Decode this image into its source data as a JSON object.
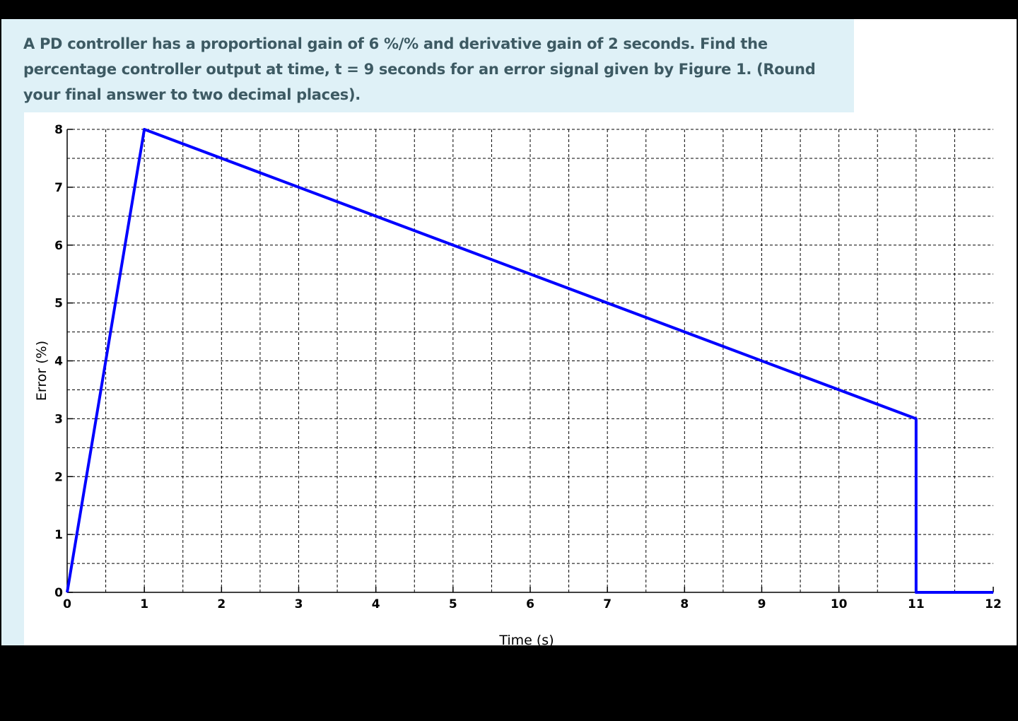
{
  "question": {
    "text": "A PD controller has a proportional gain of 6 %/% and derivative gain of 2 seconds. Find the percentage controller output at time, t = 9 seconds for an error signal given by Figure 1. (Round your final answer to two decimal places)."
  },
  "chart_data": {
    "type": "line",
    "title": "",
    "xlabel": "Time (s)",
    "ylabel": "Error (%)",
    "xlim": [
      0,
      12
    ],
    "ylim": [
      0,
      8
    ],
    "x_ticks": [
      0,
      1,
      2,
      3,
      4,
      5,
      6,
      7,
      8,
      9,
      10,
      11,
      12
    ],
    "y_ticks": [
      0,
      1,
      2,
      3,
      4,
      5,
      6,
      7,
      8
    ],
    "x_tick_labels": [
      "0",
      "1",
      "2",
      "3",
      "4",
      "5",
      "6",
      "7",
      "8",
      "9",
      "10",
      "11",
      "12"
    ],
    "y_tick_labels": [
      "0",
      "1",
      "2",
      "3",
      "4",
      "5",
      "6",
      "7",
      "8"
    ],
    "grid": true,
    "minor_grid_step_x": 0.5,
    "minor_grid_step_y": 0.5,
    "legend": "none",
    "series": [
      {
        "color": "#0000ff",
        "x": [
          0,
          1,
          11,
          11,
          12
        ],
        "y": [
          0,
          8,
          3,
          0,
          0
        ]
      }
    ]
  }
}
